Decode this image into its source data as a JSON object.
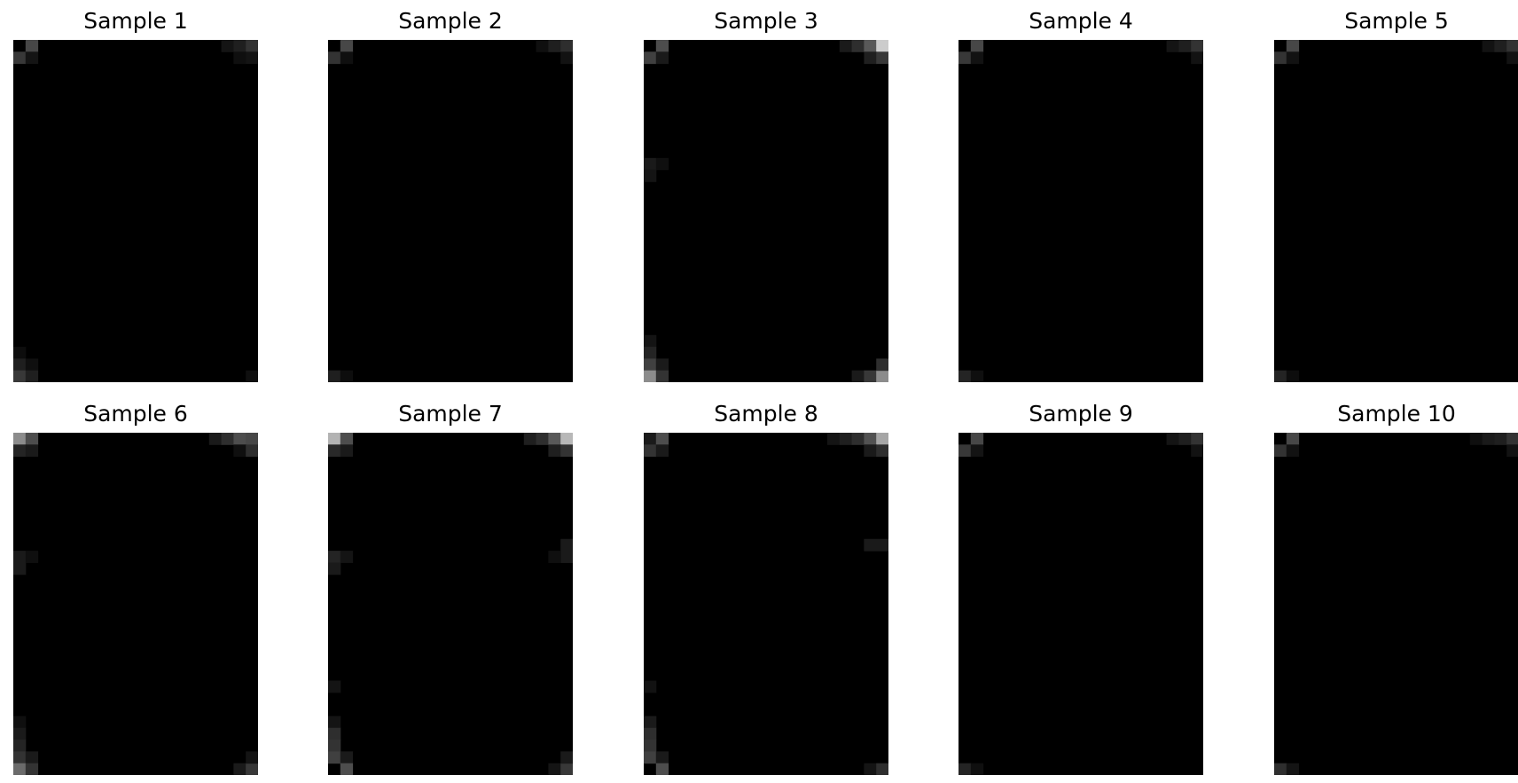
{
  "chart_data": [
    {
      "type": "heatmap",
      "title": "Sample 1",
      "grid": false,
      "colormap": "gray",
      "bright_cells": [
        {
          "col": 1,
          "row": 0,
          "value": 0.28
        },
        {
          "col": 0,
          "row": 1,
          "value": 0.22
        },
        {
          "col": 1,
          "row": 1,
          "value": 0.08
        },
        {
          "col": 17,
          "row": 0,
          "value": 0.08
        },
        {
          "col": 18,
          "row": 0,
          "value": 0.12
        },
        {
          "col": 19,
          "row": 0,
          "value": 0.2
        },
        {
          "col": 18,
          "row": 1,
          "value": 0.06
        },
        {
          "col": 19,
          "row": 1,
          "value": 0.08
        },
        {
          "col": 0,
          "row": 26,
          "value": 0.05
        },
        {
          "col": 0,
          "row": 27,
          "value": 0.12
        },
        {
          "col": 1,
          "row": 27,
          "value": 0.06
        },
        {
          "col": 0,
          "row": 28,
          "value": 0.22
        },
        {
          "col": 1,
          "row": 28,
          "value": 0.12
        },
        {
          "col": 19,
          "row": 28,
          "value": 0.06
        }
      ]
    },
    {
      "type": "heatmap",
      "title": "Sample 2",
      "grid": false,
      "colormap": "gray",
      "bright_cells": [
        {
          "col": 1,
          "row": 0,
          "value": 0.28
        },
        {
          "col": 0,
          "row": 1,
          "value": 0.2
        },
        {
          "col": 1,
          "row": 1,
          "value": 0.06
        },
        {
          "col": 17,
          "row": 0,
          "value": 0.06
        },
        {
          "col": 18,
          "row": 0,
          "value": 0.12
        },
        {
          "col": 19,
          "row": 0,
          "value": 0.18
        },
        {
          "col": 19,
          "row": 1,
          "value": 0.07
        },
        {
          "col": 0,
          "row": 28,
          "value": 0.12
        },
        {
          "col": 1,
          "row": 28,
          "value": 0.05
        }
      ]
    },
    {
      "type": "heatmap",
      "title": "Sample 3",
      "grid": false,
      "colormap": "gray",
      "bright_cells": [
        {
          "col": 1,
          "row": 0,
          "value": 0.3
        },
        {
          "col": 0,
          "row": 1,
          "value": 0.25
        },
        {
          "col": 1,
          "row": 1,
          "value": 0.1
        },
        {
          "col": 16,
          "row": 0,
          "value": 0.1
        },
        {
          "col": 17,
          "row": 0,
          "value": 0.18
        },
        {
          "col": 18,
          "row": 0,
          "value": 0.35
        },
        {
          "col": 19,
          "row": 0,
          "value": 0.8
        },
        {
          "col": 18,
          "row": 1,
          "value": 0.12
        },
        {
          "col": 19,
          "row": 1,
          "value": 0.22
        },
        {
          "col": 0,
          "row": 10,
          "value": 0.1
        },
        {
          "col": 1,
          "row": 10,
          "value": 0.06
        },
        {
          "col": 0,
          "row": 11,
          "value": 0.08
        },
        {
          "col": 0,
          "row": 25,
          "value": 0.08
        },
        {
          "col": 0,
          "row": 26,
          "value": 0.14
        },
        {
          "col": 0,
          "row": 27,
          "value": 0.25
        },
        {
          "col": 1,
          "row": 27,
          "value": 0.1
        },
        {
          "col": 0,
          "row": 28,
          "value": 0.55
        },
        {
          "col": 1,
          "row": 28,
          "value": 0.2
        },
        {
          "col": 17,
          "row": 28,
          "value": 0.1
        },
        {
          "col": 18,
          "row": 28,
          "value": 0.22
        },
        {
          "col": 19,
          "row": 28,
          "value": 0.55
        },
        {
          "col": 19,
          "row": 27,
          "value": 0.18
        }
      ]
    },
    {
      "type": "heatmap",
      "title": "Sample 4",
      "grid": false,
      "colormap": "gray",
      "bright_cells": [
        {
          "col": 1,
          "row": 0,
          "value": 0.28
        },
        {
          "col": 0,
          "row": 1,
          "value": 0.22
        },
        {
          "col": 1,
          "row": 1,
          "value": 0.07
        },
        {
          "col": 17,
          "row": 0,
          "value": 0.08
        },
        {
          "col": 18,
          "row": 0,
          "value": 0.12
        },
        {
          "col": 19,
          "row": 0,
          "value": 0.2
        },
        {
          "col": 19,
          "row": 1,
          "value": 0.07
        },
        {
          "col": 0,
          "row": 28,
          "value": 0.14
        },
        {
          "col": 1,
          "row": 28,
          "value": 0.06
        }
      ]
    },
    {
      "type": "heatmap",
      "title": "Sample 5",
      "grid": false,
      "colormap": "gray",
      "bright_cells": [
        {
          "col": 1,
          "row": 0,
          "value": 0.28
        },
        {
          "col": 0,
          "row": 1,
          "value": 0.2
        },
        {
          "col": 1,
          "row": 1,
          "value": 0.07
        },
        {
          "col": 17,
          "row": 0,
          "value": 0.07
        },
        {
          "col": 18,
          "row": 0,
          "value": 0.12
        },
        {
          "col": 19,
          "row": 0,
          "value": 0.2
        },
        {
          "col": 19,
          "row": 1,
          "value": 0.07
        },
        {
          "col": 0,
          "row": 28,
          "value": 0.14
        },
        {
          "col": 1,
          "row": 28,
          "value": 0.05
        }
      ]
    },
    {
      "type": "heatmap",
      "title": "Sample 6",
      "grid": false,
      "colormap": "gray",
      "bright_cells": [
        {
          "col": 0,
          "row": 0,
          "value": 0.55
        },
        {
          "col": 1,
          "row": 0,
          "value": 0.3
        },
        {
          "col": 0,
          "row": 1,
          "value": 0.14
        },
        {
          "col": 1,
          "row": 1,
          "value": 0.1
        },
        {
          "col": 16,
          "row": 0,
          "value": 0.1
        },
        {
          "col": 17,
          "row": 0,
          "value": 0.18
        },
        {
          "col": 18,
          "row": 0,
          "value": 0.3
        },
        {
          "col": 19,
          "row": 0,
          "value": 0.28
        },
        {
          "col": 18,
          "row": 1,
          "value": 0.06
        },
        {
          "col": 19,
          "row": 1,
          "value": 0.18
        },
        {
          "col": 0,
          "row": 10,
          "value": 0.1
        },
        {
          "col": 1,
          "row": 10,
          "value": 0.06
        },
        {
          "col": 0,
          "row": 11,
          "value": 0.1
        },
        {
          "col": 0,
          "row": 24,
          "value": 0.06
        },
        {
          "col": 0,
          "row": 25,
          "value": 0.1
        },
        {
          "col": 0,
          "row": 26,
          "value": 0.14
        },
        {
          "col": 0,
          "row": 27,
          "value": 0.2
        },
        {
          "col": 1,
          "row": 27,
          "value": 0.1
        },
        {
          "col": 0,
          "row": 28,
          "value": 0.42
        },
        {
          "col": 1,
          "row": 28,
          "value": 0.2
        },
        {
          "col": 18,
          "row": 28,
          "value": 0.1
        },
        {
          "col": 19,
          "row": 28,
          "value": 0.22
        },
        {
          "col": 19,
          "row": 27,
          "value": 0.08
        }
      ]
    },
    {
      "type": "heatmap",
      "title": "Sample 7",
      "grid": false,
      "colormap": "gray",
      "bright_cells": [
        {
          "col": 0,
          "row": 0,
          "value": 0.7
        },
        {
          "col": 1,
          "row": 0,
          "value": 0.3
        },
        {
          "col": 0,
          "row": 1,
          "value": 0.16
        },
        {
          "col": 1,
          "row": 1,
          "value": 0.1
        },
        {
          "col": 16,
          "row": 0,
          "value": 0.12
        },
        {
          "col": 17,
          "row": 0,
          "value": 0.18
        },
        {
          "col": 18,
          "row": 0,
          "value": 0.35
        },
        {
          "col": 19,
          "row": 0,
          "value": 0.72
        },
        {
          "col": 18,
          "row": 1,
          "value": 0.12
        },
        {
          "col": 19,
          "row": 1,
          "value": 0.2
        },
        {
          "col": 0,
          "row": 10,
          "value": 0.14
        },
        {
          "col": 1,
          "row": 10,
          "value": 0.08
        },
        {
          "col": 0,
          "row": 11,
          "value": 0.1
        },
        {
          "col": 19,
          "row": 9,
          "value": 0.1
        },
        {
          "col": 19,
          "row": 10,
          "value": 0.1
        },
        {
          "col": 18,
          "row": 10,
          "value": 0.06
        },
        {
          "col": 0,
          "row": 21,
          "value": 0.08
        },
        {
          "col": 0,
          "row": 24,
          "value": 0.08
        },
        {
          "col": 0,
          "row": 25,
          "value": 0.18
        },
        {
          "col": 0,
          "row": 26,
          "value": 0.2
        },
        {
          "col": 0,
          "row": 27,
          "value": 0.25
        },
        {
          "col": 1,
          "row": 27,
          "value": 0.1
        },
        {
          "col": 1,
          "row": 28,
          "value": 0.3
        },
        {
          "col": 18,
          "row": 28,
          "value": 0.08
        },
        {
          "col": 19,
          "row": 28,
          "value": 0.22
        },
        {
          "col": 19,
          "row": 27,
          "value": 0.1
        }
      ]
    },
    {
      "type": "heatmap",
      "title": "Sample 8",
      "grid": false,
      "colormap": "gray",
      "bright_cells": [
        {
          "col": 0,
          "row": 0,
          "value": 0.1
        },
        {
          "col": 1,
          "row": 0,
          "value": 0.3
        },
        {
          "col": 0,
          "row": 1,
          "value": 0.2
        },
        {
          "col": 1,
          "row": 1,
          "value": 0.1
        },
        {
          "col": 15,
          "row": 0,
          "value": 0.08
        },
        {
          "col": 16,
          "row": 0,
          "value": 0.12
        },
        {
          "col": 17,
          "row": 0,
          "value": 0.18
        },
        {
          "col": 18,
          "row": 0,
          "value": 0.32
        },
        {
          "col": 19,
          "row": 0,
          "value": 0.65
        },
        {
          "col": 18,
          "row": 1,
          "value": 0.1
        },
        {
          "col": 19,
          "row": 1,
          "value": 0.18
        },
        {
          "col": 18,
          "row": 9,
          "value": 0.1
        },
        {
          "col": 19,
          "row": 9,
          "value": 0.1
        },
        {
          "col": 0,
          "row": 21,
          "value": 0.07
        },
        {
          "col": 0,
          "row": 24,
          "value": 0.1
        },
        {
          "col": 0,
          "row": 25,
          "value": 0.18
        },
        {
          "col": 0,
          "row": 26,
          "value": 0.2
        },
        {
          "col": 0,
          "row": 27,
          "value": 0.25
        },
        {
          "col": 1,
          "row": 27,
          "value": 0.1
        },
        {
          "col": 1,
          "row": 28,
          "value": 0.3
        },
        {
          "col": 18,
          "row": 28,
          "value": 0.08
        },
        {
          "col": 19,
          "row": 28,
          "value": 0.18
        }
      ]
    },
    {
      "type": "heatmap",
      "title": "Sample 9",
      "grid": false,
      "colormap": "gray",
      "bright_cells": [
        {
          "col": 1,
          "row": 0,
          "value": 0.28
        },
        {
          "col": 0,
          "row": 1,
          "value": 0.22
        },
        {
          "col": 1,
          "row": 1,
          "value": 0.08
        },
        {
          "col": 17,
          "row": 0,
          "value": 0.08
        },
        {
          "col": 18,
          "row": 0,
          "value": 0.12
        },
        {
          "col": 19,
          "row": 0,
          "value": 0.2
        },
        {
          "col": 19,
          "row": 1,
          "value": 0.07
        },
        {
          "col": 0,
          "row": 28,
          "value": 0.14
        },
        {
          "col": 1,
          "row": 28,
          "value": 0.06
        }
      ]
    },
    {
      "type": "heatmap",
      "title": "Sample 10",
      "grid": false,
      "colormap": "gray",
      "bright_cells": [
        {
          "col": 1,
          "row": 0,
          "value": 0.28
        },
        {
          "col": 0,
          "row": 1,
          "value": 0.2
        },
        {
          "col": 1,
          "row": 1,
          "value": 0.07
        },
        {
          "col": 16,
          "row": 0,
          "value": 0.06
        },
        {
          "col": 17,
          "row": 0,
          "value": 0.1
        },
        {
          "col": 18,
          "row": 0,
          "value": 0.12
        },
        {
          "col": 19,
          "row": 0,
          "value": 0.2
        },
        {
          "col": 19,
          "row": 1,
          "value": 0.07
        },
        {
          "col": 0,
          "row": 28,
          "value": 0.18
        },
        {
          "col": 1,
          "row": 28,
          "value": 0.08
        }
      ]
    }
  ]
}
